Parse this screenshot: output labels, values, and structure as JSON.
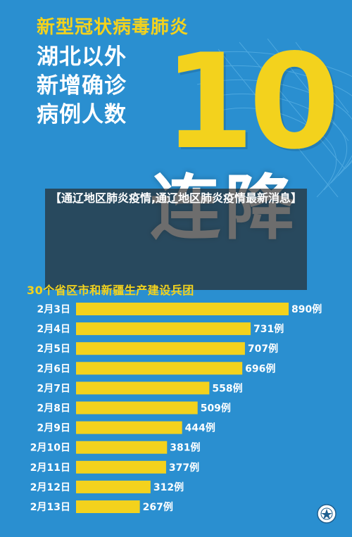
{
  "header": {
    "title_line1": "新型冠状病毒肺炎",
    "title_line2": "湖北以外",
    "title_line3": "新增确诊",
    "title_line4": "病例人数",
    "big_number": "10",
    "streak_label": "连降"
  },
  "banner": {
    "text": "【通辽地区肺炎疫情,通辽地区肺炎疫情最新消息】"
  },
  "subtitle": "30个省区市和新疆生产建设兵团",
  "colors": {
    "background": "#2a8fd0",
    "accent": "#f3d21d",
    "text": "#ffffff"
  },
  "chart_data": {
    "type": "bar",
    "orientation": "horizontal",
    "categories": [
      "2月3日",
      "2月4日",
      "2月5日",
      "2月6日",
      "2月7日",
      "2月8日",
      "2月9日",
      "2月10日",
      "2月11日",
      "2月12日",
      "2月13日"
    ],
    "values": [
      890,
      731,
      707,
      696,
      558,
      509,
      444,
      381,
      377,
      312,
      267
    ],
    "value_suffix": "例"
  },
  "logo_icon": "emblem-icon"
}
